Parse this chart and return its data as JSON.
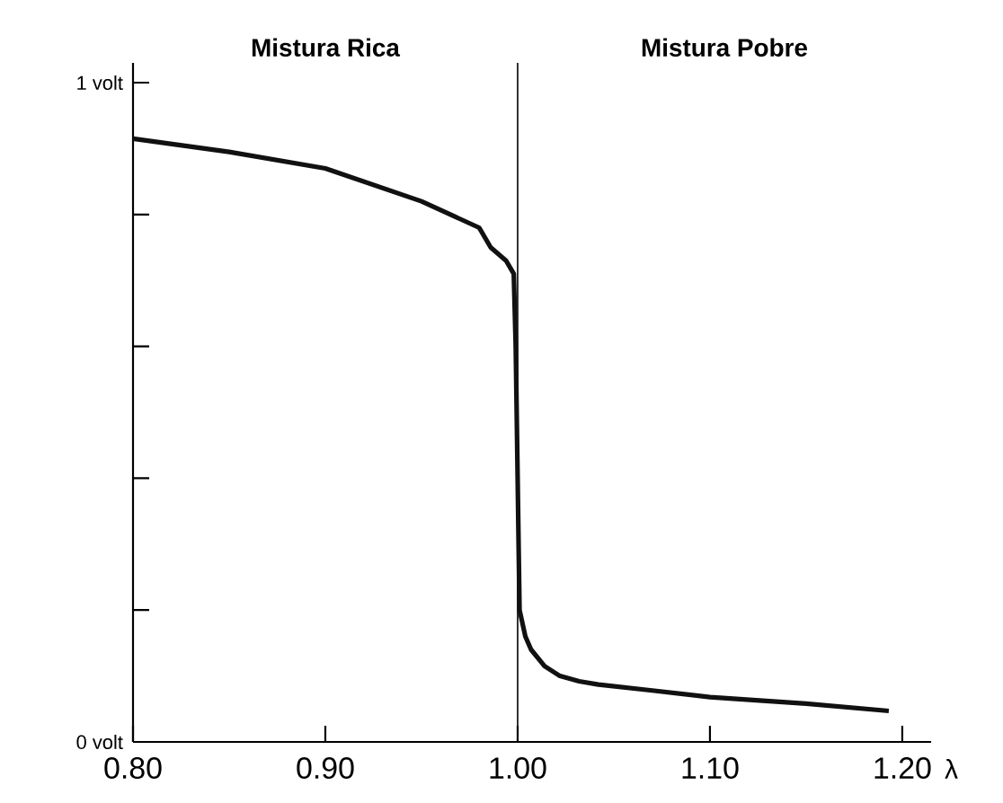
{
  "chart_data": {
    "type": "line",
    "xlabel": "λ",
    "annotations": [
      "Mistura Rica",
      "Mistura Pobre"
    ],
    "x": [
      0.8,
      0.85,
      0.9,
      0.95,
      0.98,
      0.986,
      0.994,
      0.998,
      0.999,
      1.0,
      1.001,
      1.004,
      1.007,
      1.014,
      1.022,
      1.032,
      1.042,
      1.07,
      1.1,
      1.15,
      1.193
    ],
    "series": [
      {
        "color": "#111111",
        "values": [
          0.915,
          0.895,
          0.87,
          0.82,
          0.78,
          0.75,
          0.73,
          0.71,
          0.6,
          0.4,
          0.2,
          0.16,
          0.14,
          0.115,
          0.1,
          0.092,
          0.087,
          0.078,
          0.068,
          0.058,
          0.047
        ]
      }
    ],
    "xlim": [
      0.8,
      1.215
    ],
    "ylim": [
      0,
      1.03
    ],
    "xticks": [
      {
        "value": 0.8,
        "label": "0.80"
      },
      {
        "value": 0.9,
        "label": "0.90"
      },
      {
        "value": 1.0,
        "label": "1.00"
      },
      {
        "value": 1.1,
        "label": "1.10"
      },
      {
        "value": 1.2,
        "label": "1.20"
      }
    ],
    "yticks": [
      {
        "value": 0,
        "label": "0 volt"
      },
      {
        "value": 0.2,
        "label": null
      },
      {
        "value": 0.4,
        "label": null
      },
      {
        "value": 0.6,
        "label": null
      },
      {
        "value": 0.8,
        "label": null
      },
      {
        "value": 1,
        "label": "1 volt"
      }
    ],
    "ref_lines": [
      {
        "axis": "x",
        "value": 1.0
      }
    ],
    "grid": false,
    "marker": "none",
    "line_style": "solid"
  }
}
